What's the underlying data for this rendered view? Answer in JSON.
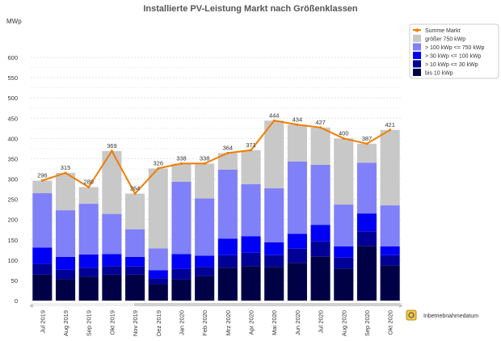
{
  "chart_data": {
    "type": "bar",
    "stacked": true,
    "title": "Installierte PV-Leistung Markt nach Größenklassen",
    "ylabel": "MWp",
    "xlabel": "Inbetriebnahmedatum",
    "ylim": [
      0,
      600
    ],
    "yticks": [
      0,
      50,
      100,
      150,
      200,
      250,
      300,
      350,
      400,
      450,
      500,
      550,
      600
    ],
    "grid": true,
    "legend_position": "top-right",
    "categories": [
      "Jul 2019",
      "Aug 2019",
      "Sep 2019",
      "Okt 2019",
      "Nov 2019",
      "Dez 2019",
      "Jan 2020",
      "Feb 2020",
      "Mrz 2020",
      "Apr 2020",
      "Mai 2020",
      "Jun 2020",
      "Jul 2020",
      "Aug 2020",
      "Sep 2020",
      "Okt 2020"
    ],
    "series": [
      {
        "name": "bis 10 kWp",
        "type": "bar",
        "color": "#000046",
        "values": [
          64,
          53,
          59,
          64,
          64,
          41,
          52,
          60,
          81,
          85,
          83,
          93,
          109,
          79,
          135,
          87
        ]
      },
      {
        "name": "> 10 kWp <= 30 kWp",
        "type": "bar",
        "color": "#000096",
        "values": [
          27,
          23,
          22,
          21,
          20,
          14,
          26,
          23,
          31,
          33,
          29,
          35,
          37,
          27,
          36,
          25
        ]
      },
      {
        "name": "> 30 kWp <= 100 kWp",
        "type": "bar",
        "color": "#0000f5",
        "values": [
          40,
          32,
          33,
          30,
          24,
          20,
          37,
          28,
          41,
          41,
          32,
          37,
          41,
          28,
          44,
          22
        ]
      },
      {
        "name": "> 100 kWp <= 750 kWp",
        "type": "bar",
        "color": "#8080f8",
        "values": [
          134,
          115,
          125,
          99,
          68,
          54,
          178,
          141,
          170,
          128,
          133,
          178,
          148,
          103,
          125,
          101
        ]
      },
      {
        "name": "größer 750 kWp",
        "type": "bar",
        "color": "#c8c8c8",
        "values": [
          31,
          92,
          41,
          155,
          88,
          197,
          45,
          86,
          41,
          84,
          167,
          91,
          92,
          163,
          47,
          186
        ]
      },
      {
        "name": "Summe Markt",
        "type": "line",
        "color": "#f07d00",
        "values": [
          296,
          315,
          280,
          369,
          264,
          326,
          338,
          338,
          364,
          371,
          444,
          434,
          427,
          400,
          387,
          421
        ]
      }
    ]
  }
}
